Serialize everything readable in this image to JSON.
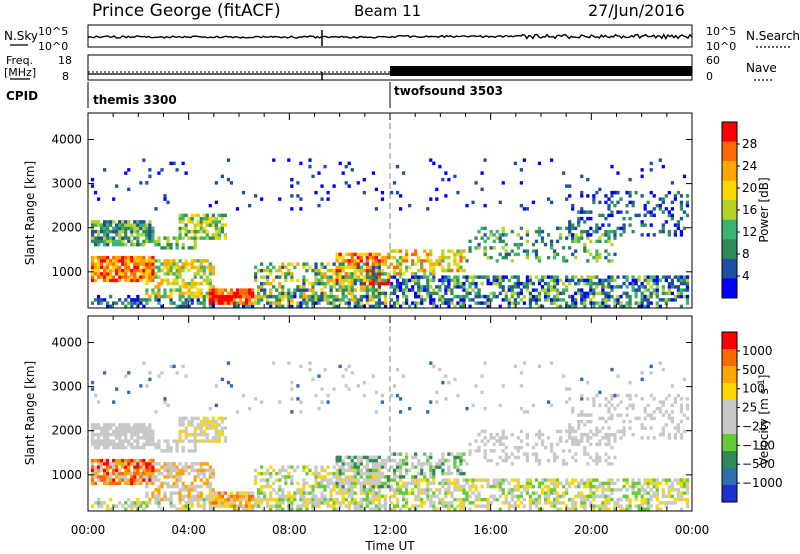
{
  "header": {
    "station": "Prince George (fitACF)",
    "beam": "Beam 11",
    "date": "27/Jun/2016"
  },
  "panels": {
    "nsky": {
      "left_label": "N.Sky",
      "right_label": "N.Search",
      "y_ticks": [
        "10^5",
        "10^0"
      ]
    },
    "freq": {
      "left_label_1": "Freq.",
      "left_label_2": "[MHz]",
      "right_label": "Nave",
      "left_ticks": [
        "18",
        "8"
      ],
      "right_ticks": [
        "60",
        "0"
      ]
    },
    "cpid": {
      "label": "CPID",
      "segments": [
        {
          "name": "themis 3300",
          "start_hour": 0
        },
        {
          "name": "twofsound 3503",
          "start_hour": 12
        }
      ]
    }
  },
  "chart_data": [
    {
      "type": "heatmap",
      "quantity": "Power",
      "ylabel": "Slant Range [km]",
      "xlabel": "Time UT",
      "xlim": [
        0,
        24
      ],
      "ylim": [
        180,
        4600
      ],
      "y_ticks": [
        "1000",
        "2000",
        "3000",
        "4000"
      ],
      "colorbar": {
        "label": "Power [dB]",
        "ticks": [
          "4",
          "8",
          "12",
          "16",
          "20",
          "24",
          "28"
        ],
        "colors": [
          "#0000ff",
          "#1f4fa3",
          "#2e8b57",
          "#3cb371",
          "#b4d22a",
          "#ffd700",
          "#ffa500",
          "#ff6a00",
          "#ff0000"
        ]
      }
    },
    {
      "type": "heatmap",
      "quantity": "Velocity",
      "ylabel": "Slant Range [km]",
      "xlabel": "Time UT",
      "xlim": [
        0,
        24
      ],
      "ylim": [
        180,
        4600
      ],
      "y_ticks": [
        "1000",
        "2000",
        "3000",
        "4000"
      ],
      "x_ticks": [
        "00:00",
        "04:00",
        "08:00",
        "12:00",
        "16:00",
        "20:00",
        "00:00"
      ],
      "colorbar": {
        "label": "Velocity",
        "unit": "[m s",
        "unit_exp": "-1",
        "unit_close": "]",
        "ticks": [
          "1000",
          "500",
          "100",
          "25",
          "−25",
          "−100",
          "−500",
          "−1000"
        ],
        "colors": [
          "#1a33cc",
          "#2f6fb0",
          "#2e8b57",
          "#66cc33",
          "#c8c8c8",
          "#c8c8c8",
          "#ffd700",
          "#ffa500",
          "#ff6a00",
          "#ff0000"
        ]
      }
    }
  ]
}
